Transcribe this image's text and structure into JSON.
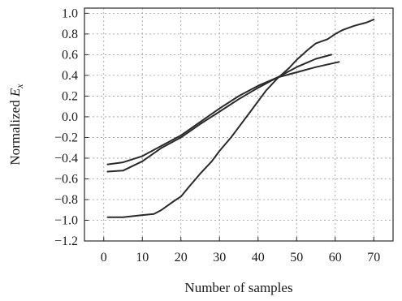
{
  "chart_data": {
    "type": "line",
    "title": "",
    "xlabel": "Number of samples",
    "ylabel_prefix": "Normalized ",
    "ylabel_var": "E",
    "ylabel_sub": "x",
    "xlim": [
      -5,
      75
    ],
    "ylim": [
      -1.2,
      1.05
    ],
    "xticks": [
      0,
      10,
      20,
      30,
      40,
      50,
      60,
      70
    ],
    "yticks": [
      -1.2,
      -1.0,
      -0.8,
      -0.6,
      -0.4,
      -0.2,
      0.0,
      0.2,
      0.4,
      0.6,
      0.8,
      1.0
    ],
    "ytick_labels": [
      "−1.2",
      "−1.0",
      "−0.8",
      "−0.6",
      "−0.4",
      "−0.2",
      "0.0",
      "0.2",
      "0.4",
      "0.6",
      "0.8",
      "1.0"
    ],
    "grid": true,
    "series": [
      {
        "x": [
          1,
          5,
          10,
          13,
          15,
          18,
          20,
          22,
          25,
          28,
          30,
          33,
          35,
          38,
          40,
          42,
          45,
          48,
          50,
          53,
          55,
          58,
          60,
          62,
          65,
          68,
          70
        ],
        "values": [
          -0.97,
          -0.97,
          -0.95,
          -0.94,
          -0.9,
          -0.82,
          -0.77,
          -0.68,
          -0.55,
          -0.43,
          -0.33,
          -0.2,
          -0.1,
          0.05,
          0.15,
          0.25,
          0.37,
          0.47,
          0.55,
          0.65,
          0.71,
          0.75,
          0.8,
          0.84,
          0.88,
          0.91,
          0.94
        ]
      },
      {
        "x": [
          1,
          5,
          10,
          15,
          20,
          25,
          30,
          35,
          40,
          45,
          50,
          55,
          59
        ],
        "values": [
          -0.53,
          -0.52,
          -0.43,
          -0.3,
          -0.2,
          -0.07,
          0.05,
          0.17,
          0.28,
          0.38,
          0.48,
          0.56,
          0.6
        ]
      },
      {
        "x": [
          1,
          5,
          10,
          15,
          20,
          25,
          30,
          35,
          40,
          45,
          50,
          55,
          61
        ],
        "values": [
          -0.46,
          -0.44,
          -0.38,
          -0.28,
          -0.18,
          -0.05,
          0.08,
          0.2,
          0.3,
          0.38,
          0.43,
          0.48,
          0.53
        ]
      }
    ]
  }
}
